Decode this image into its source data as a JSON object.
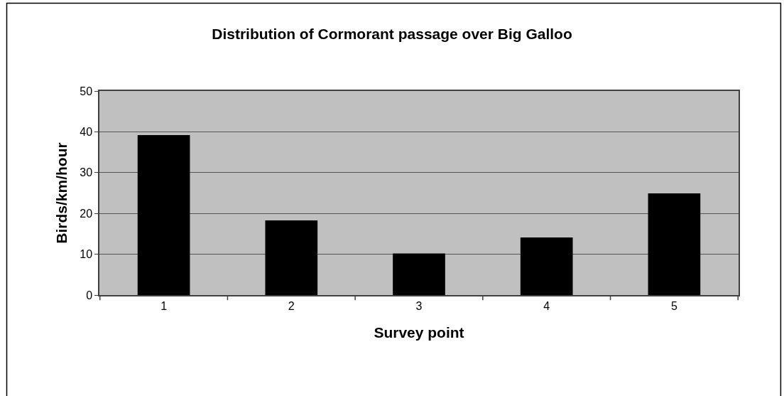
{
  "chart_data": {
    "type": "bar",
    "title": "Distribution of Cormorant passage over Big Galloo",
    "xlabel": "Survey point",
    "ylabel": "Birds/km/hour",
    "categories": [
      "1",
      "2",
      "3",
      "4",
      "5"
    ],
    "values": [
      39.2,
      18.3,
      10.2,
      14.1,
      24.9
    ],
    "color": "#000000",
    "ylim": [
      0,
      50
    ],
    "yticks": [
      0,
      10,
      20,
      30,
      40,
      50
    ],
    "grid": "y",
    "legend": false
  }
}
